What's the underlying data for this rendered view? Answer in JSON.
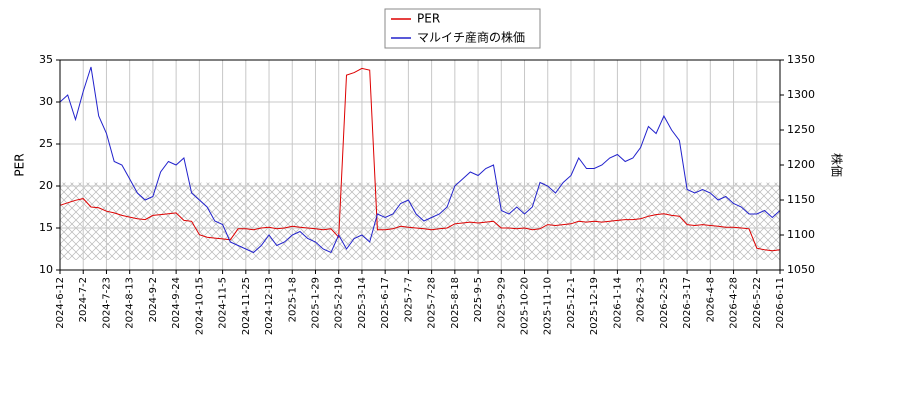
{
  "chart_data": {
    "type": "line",
    "categories": [
      "2024-6-12",
      null,
      null,
      "2024-7-2",
      null,
      null,
      "2024-7-23",
      null,
      null,
      "2024-8-13",
      null,
      null,
      "2024-9-2",
      null,
      null,
      "2024-9-24",
      null,
      null,
      "2024-10-15",
      null,
      null,
      "2024-11-5",
      null,
      null,
      "2024-11-25",
      null,
      null,
      "2024-12-13",
      null,
      null,
      "2025-1-8",
      null,
      null,
      "2025-1-29",
      null,
      null,
      "2025-2-19",
      null,
      null,
      "2025-3-14",
      null,
      null,
      "2025-6-17",
      null,
      null,
      "2025-7-7",
      null,
      null,
      "2025-7-28",
      null,
      null,
      "2025-8-18",
      null,
      null,
      "2025-9-5",
      null,
      null,
      "2025-9-29",
      null,
      null,
      "2025-10-20",
      null,
      null,
      "2025-11-10",
      null,
      null,
      "2025-12-1",
      null,
      null,
      "2025-12-19",
      null,
      null,
      "2026-1-14",
      null,
      null,
      "2026-2-3",
      null,
      null,
      "2026-2-25",
      null,
      null,
      "2026-3-17",
      null,
      null,
      "2026-4-8",
      null,
      null,
      "2026-4-28",
      null,
      null,
      "2026-5-22",
      null,
      null,
      "2026-6-11"
    ],
    "series": [
      {
        "name": "PER",
        "color": "#dd0000",
        "axis": "y",
        "values": [
          17.7,
          18.0,
          18.3,
          18.5,
          17.5,
          17.4,
          17.0,
          16.8,
          16.5,
          16.3,
          16.1,
          16.0,
          16.5,
          16.6,
          16.7,
          16.8,
          15.9,
          15.8,
          14.2,
          13.9,
          13.8,
          13.7,
          13.6,
          14.9,
          14.9,
          14.8,
          15.0,
          15.1,
          14.9,
          15.0,
          15.2,
          15.1,
          15.0,
          14.9,
          14.8,
          14.9,
          13.9,
          33.2,
          33.5,
          34.0,
          33.8,
          14.8,
          14.8,
          14.9,
          15.2,
          15.1,
          15.0,
          14.9,
          14.8,
          14.9,
          15.0,
          15.5,
          15.6,
          15.7,
          15.6,
          15.7,
          15.8,
          15.0,
          15.0,
          14.9,
          15.0,
          14.8,
          14.9,
          15.4,
          15.3,
          15.4,
          15.5,
          15.8,
          15.7,
          15.8,
          15.7,
          15.8,
          15.9,
          16.0,
          16.0,
          16.1,
          16.4,
          16.6,
          16.7,
          16.5,
          16.4,
          15.4,
          15.3,
          15.4,
          15.3,
          15.2,
          15.1,
          15.1,
          15.0,
          14.9,
          12.6,
          12.4,
          12.3,
          12.4
        ]
      },
      {
        "name": "マルイチ産商の株価",
        "color": "#2222cc",
        "axis": "y2",
        "values": [
          1290,
          1300,
          1265,
          1305,
          1340,
          1270,
          1245,
          1205,
          1200,
          1180,
          1160,
          1150,
          1155,
          1190,
          1205,
          1200,
          1210,
          1160,
          1150,
          1140,
          1120,
          1115,
          1090,
          1085,
          1080,
          1075,
          1085,
          1100,
          1085,
          1090,
          1100,
          1105,
          1095,
          1090,
          1080,
          1075,
          1100,
          1080,
          1095,
          1100,
          1090,
          1130,
          1125,
          1130,
          1145,
          1150,
          1130,
          1120,
          1125,
          1130,
          1140,
          1170,
          1180,
          1190,
          1185,
          1195,
          1200,
          1135,
          1130,
          1140,
          1130,
          1140,
          1175,
          1170,
          1160,
          1175,
          1185,
          1210,
          1195,
          1195,
          1200,
          1210,
          1215,
          1205,
          1210,
          1225,
          1255,
          1245,
          1270,
          1250,
          1235,
          1165,
          1160,
          1165,
          1160,
          1150,
          1155,
          1145,
          1140,
          1130,
          1130,
          1135,
          1125,
          1135
        ]
      }
    ],
    "ylabel": "PER",
    "y2label": "株価",
    "ylim": [
      10,
      35
    ],
    "yticks": [
      10,
      15,
      20,
      25,
      30,
      35
    ],
    "y2lim": [
      1050,
      1350
    ],
    "y2ticks": [
      1050,
      1100,
      1150,
      1200,
      1250,
      1300,
      1350
    ],
    "shaded_range": [
      11.2,
      20.4
    ],
    "grid": true,
    "legend": "top"
  }
}
